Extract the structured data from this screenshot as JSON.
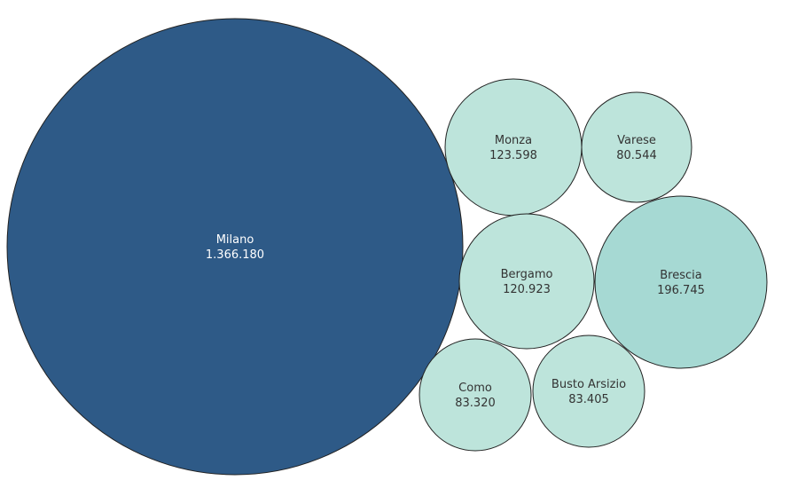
{
  "chart_data": {
    "type": "bubble",
    "title": "",
    "bubbles": [
      {
        "name": "Milano",
        "value_label": "1.366.180",
        "value": 1366180,
        "color": "#2e5a87"
      },
      {
        "name": "Monza",
        "value_label": "123.598",
        "value": 123598,
        "color": "#bde4db"
      },
      {
        "name": "Varese",
        "value_label": "80.544",
        "value": 80544,
        "color": "#bde4db"
      },
      {
        "name": "Bergamo",
        "value_label": "120.923",
        "value": 120923,
        "color": "#bde4db"
      },
      {
        "name": "Brescia",
        "value_label": "196.745",
        "value": 196745,
        "color": "#a6d9d3"
      },
      {
        "name": "Como",
        "value_label": "83.320",
        "value": 83320,
        "color": "#bde4db"
      },
      {
        "name": "Busto Arsizio",
        "value_label": "83.405",
        "value": 83405,
        "color": "#bde4db"
      }
    ]
  }
}
